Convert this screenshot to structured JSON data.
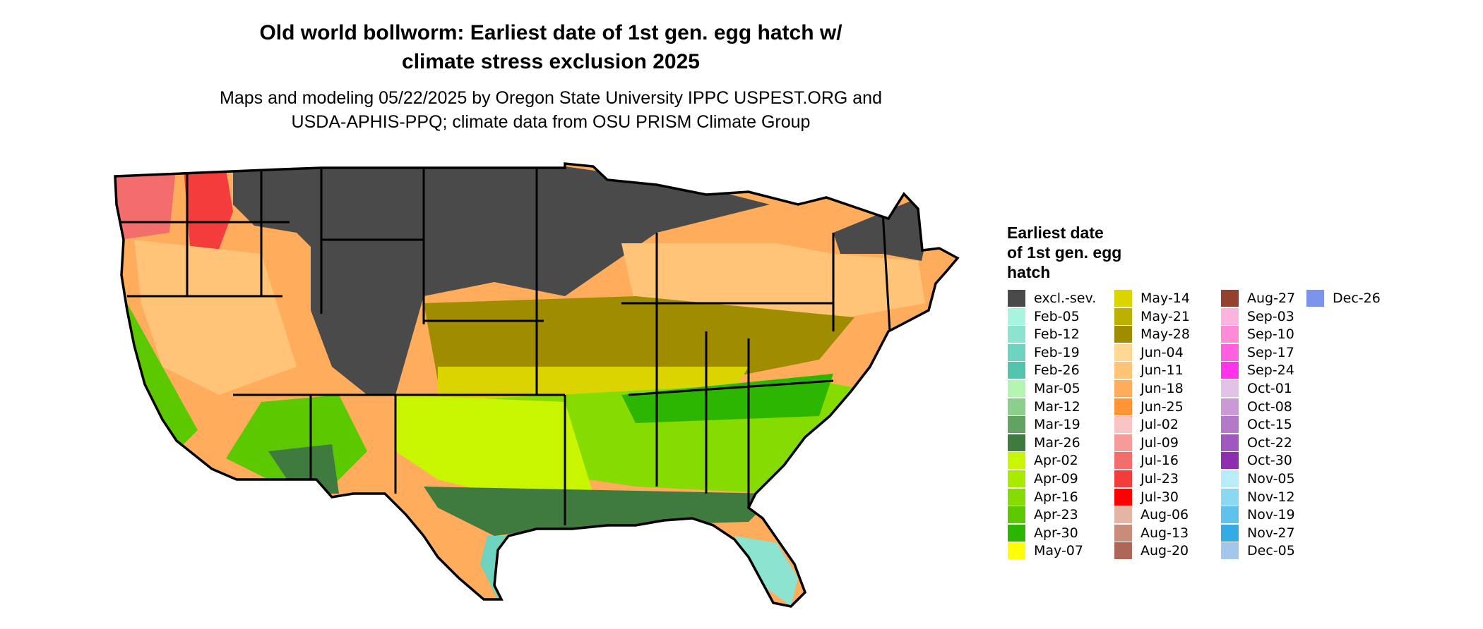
{
  "title_lines": [
    "Old world bollworm: Earliest date of 1st gen. egg hatch w/",
    "climate stress exclusion 2025"
  ],
  "subtitle_lines": [
    "Maps and modeling 05/22/2025 by Oregon State University IPPC USPEST.ORG and",
    "USDA-APHIS-PPQ; climate data from OSU PRISM Climate Group"
  ],
  "legend": {
    "title_lines": [
      "Earliest date",
      "of 1st gen. egg",
      "hatch"
    ],
    "columns": [
      [
        {
          "label": "excl.-sev.",
          "color": "#4a4a4a"
        },
        {
          "label": "Feb-05",
          "color": "#a7f5e0"
        },
        {
          "label": "Feb-12",
          "color": "#8ce3cf"
        },
        {
          "label": "Feb-19",
          "color": "#6fd4bf"
        },
        {
          "label": "Feb-26",
          "color": "#52c4ae"
        },
        {
          "label": "Mar-05",
          "color": "#b5f5b2"
        },
        {
          "label": "Mar-12",
          "color": "#8ccf8c"
        },
        {
          "label": "Mar-19",
          "color": "#62a262"
        },
        {
          "label": "Mar-26",
          "color": "#3f7a3f"
        },
        {
          "label": "Apr-02",
          "color": "#c8f500"
        },
        {
          "label": "Apr-09",
          "color": "#a9eb00"
        },
        {
          "label": "Apr-16",
          "color": "#86dc00"
        },
        {
          "label": "Apr-23",
          "color": "#5cc800"
        },
        {
          "label": "Apr-30",
          "color": "#2db600"
        },
        {
          "label": "May-07",
          "color": "#ffff00"
        }
      ],
      [
        {
          "label": "May-14",
          "color": "#dcd400"
        },
        {
          "label": "May-21",
          "color": "#bcb000"
        },
        {
          "label": "May-28",
          "color": "#a08c00"
        },
        {
          "label": "Jun-04",
          "color": "#ffd893"
        },
        {
          "label": "Jun-11",
          "color": "#ffc478"
        },
        {
          "label": "Jun-18",
          "color": "#ffad5c"
        },
        {
          "label": "Jun-25",
          "color": "#ff9535"
        },
        {
          "label": "Jul-02",
          "color": "#f8c4c4"
        },
        {
          "label": "Jul-09",
          "color": "#f69a9a"
        },
        {
          "label": "Jul-16",
          "color": "#f36d6d"
        },
        {
          "label": "Jul-23",
          "color": "#f43c3c"
        },
        {
          "label": "Jul-30",
          "color": "#ff0000"
        },
        {
          "label": "Aug-06",
          "color": "#e4b5a4"
        },
        {
          "label": "Aug-13",
          "color": "#c98c7a"
        },
        {
          "label": "Aug-20",
          "color": "#ad6657"
        }
      ],
      [
        {
          "label": "Aug-27",
          "color": "#94422e"
        },
        {
          "label": "Sep-03",
          "color": "#fbb4dd"
        },
        {
          "label": "Sep-10",
          "color": "#ff8ad8"
        },
        {
          "label": "Sep-17",
          "color": "#ff60e0"
        },
        {
          "label": "Sep-24",
          "color": "#ff33ea"
        },
        {
          "label": "Oct-01",
          "color": "#e2c2e6"
        },
        {
          "label": "Oct-08",
          "color": "#ca9ad6"
        },
        {
          "label": "Oct-15",
          "color": "#b47ac9"
        },
        {
          "label": "Oct-22",
          "color": "#a057be"
        },
        {
          "label": "Oct-30",
          "color": "#8d2eb0"
        },
        {
          "label": "Nov-05",
          "color": "#b7ecf8"
        },
        {
          "label": "Nov-12",
          "color": "#8bd8f2"
        },
        {
          "label": "Nov-19",
          "color": "#5ec2ec"
        },
        {
          "label": "Nov-27",
          "color": "#34ace3"
        },
        {
          "label": "Dec-05",
          "color": "#a4c6ea"
        }
      ],
      [
        {
          "label": "Dec-26",
          "color": "#7b93ea"
        }
      ]
    ]
  }
}
